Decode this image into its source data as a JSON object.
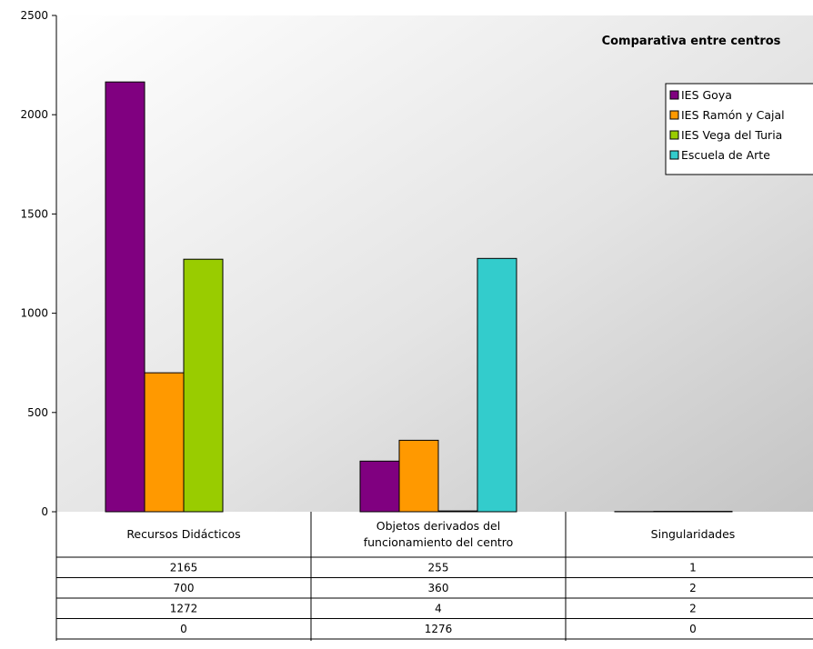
{
  "chart_data": {
    "type": "bar",
    "title": "Comparativa entre centros",
    "categories": [
      "Recursos Didácticos",
      "Objetos derivados del funcionamiento del centro",
      "Singularidades"
    ],
    "category_lines": [
      [
        "Recursos Didácticos"
      ],
      [
        "Objetos derivados del",
        "funcionamiento del centro"
      ],
      [
        "Singularidades"
      ]
    ],
    "series": [
      {
        "name": "IES Goya",
        "color": "#800080",
        "values": [
          2165,
          255,
          1
        ]
      },
      {
        "name": "IES Ramón y Cajal",
        "color": "#FF9900",
        "values": [
          700,
          360,
          2
        ]
      },
      {
        "name": "IES Vega del Turia",
        "color": "#99CC00",
        "values": [
          1272,
          4,
          2
        ]
      },
      {
        "name": "Escuela de Arte",
        "color": "#33CCCC",
        "values": [
          0,
          1276,
          0
        ]
      }
    ],
    "ylim": [
      0,
      2500
    ],
    "yticks": [
      0,
      500,
      1000,
      1500,
      2000,
      2500
    ],
    "xlabel": "",
    "ylabel": "",
    "legend": "top-right",
    "data_table": true,
    "grid": false
  }
}
